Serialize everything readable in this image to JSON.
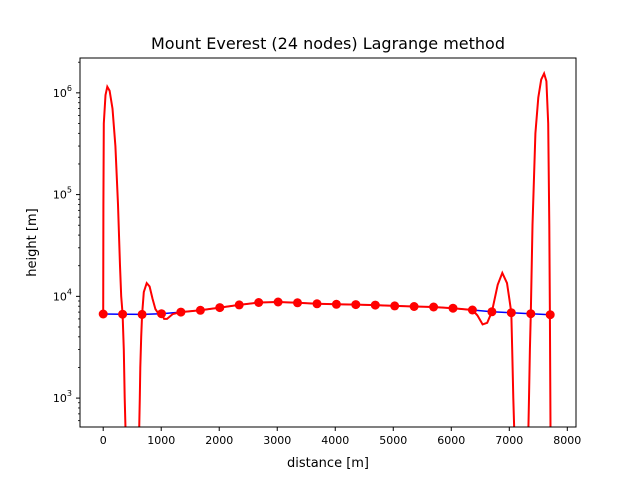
{
  "chart_data": {
    "type": "line",
    "title": "Mount Everest (24 nodes) Lagrange method",
    "xlabel": "distance [m]",
    "ylabel": "height [m]",
    "xlim": [
      -400,
      8150
    ],
    "ylim": [
      520,
      2200000
    ],
    "yscale": "log",
    "grid": false,
    "x_ticks": [
      0,
      1000,
      2000,
      3000,
      4000,
      5000,
      6000,
      7000,
      8000
    ],
    "y_ticks": [
      {
        "value": 1000,
        "base": "10",
        "exp": "3"
      },
      {
        "value": 10000,
        "base": "10",
        "exp": "4"
      },
      {
        "value": 100000,
        "base": "10",
        "exp": "5"
      },
      {
        "value": 1000000,
        "base": "10",
        "exp": "6"
      }
    ],
    "series": [
      {
        "role": "reference profile",
        "color": "#0000ff",
        "points": [
          [
            0,
            6700
          ],
          [
            335,
            6680
          ],
          [
            670,
            6650
          ],
          [
            1005,
            6750
          ],
          [
            1340,
            7000
          ],
          [
            1675,
            7300
          ],
          [
            2010,
            7750
          ],
          [
            2345,
            8250
          ],
          [
            2680,
            8700
          ],
          [
            3015,
            8800
          ],
          [
            3350,
            8650
          ],
          [
            3685,
            8450
          ],
          [
            4020,
            8350
          ],
          [
            4355,
            8300
          ],
          [
            4690,
            8200
          ],
          [
            5025,
            8050
          ],
          [
            5360,
            7950
          ],
          [
            5695,
            7850
          ],
          [
            6030,
            7650
          ],
          [
            6365,
            7350
          ],
          [
            6700,
            7050
          ],
          [
            7035,
            6900
          ],
          [
            7370,
            6750
          ],
          [
            7705,
            6600
          ]
        ]
      },
      {
        "role": "interpolation curve",
        "color": "#ff0000",
        "points": [
          [
            0,
            6700
          ],
          [
            3,
            80000
          ],
          [
            10,
            500000
          ],
          [
            40,
            950000
          ],
          [
            70,
            1150000
          ],
          [
            110,
            1050000
          ],
          [
            160,
            700000
          ],
          [
            210,
            300000
          ],
          [
            255,
            80000
          ],
          [
            290,
            20000
          ],
          [
            310,
            10000
          ],
          [
            335,
            6680
          ],
          [
            355,
            3000
          ],
          [
            370,
            1000
          ],
          [
            385,
            500
          ],
          [
            620,
            500
          ],
          [
            630,
            1000
          ],
          [
            640,
            2000
          ],
          [
            655,
            4000
          ],
          [
            670,
            6650
          ],
          [
            700,
            11000
          ],
          [
            750,
            13500
          ],
          [
            800,
            12500
          ],
          [
            850,
            9500
          ],
          [
            900,
            7500
          ],
          [
            950,
            6800
          ],
          [
            1005,
            6750
          ],
          [
            1050,
            6000
          ],
          [
            1100,
            6000
          ],
          [
            1200,
            6700
          ],
          [
            1340,
            7000
          ],
          [
            1675,
            7300
          ],
          [
            2010,
            7750
          ],
          [
            2345,
            8250
          ],
          [
            2680,
            8700
          ],
          [
            3015,
            8800
          ],
          [
            3350,
            8650
          ],
          [
            3685,
            8450
          ],
          [
            4020,
            8350
          ],
          [
            4355,
            8300
          ],
          [
            4690,
            8200
          ],
          [
            5025,
            8050
          ],
          [
            5360,
            7950
          ],
          [
            5695,
            7850
          ],
          [
            6030,
            7650
          ],
          [
            6200,
            7500
          ],
          [
            6365,
            7350
          ],
          [
            6450,
            6500
          ],
          [
            6540,
            5300
          ],
          [
            6620,
            5500
          ],
          [
            6700,
            7050
          ],
          [
            6800,
            13000
          ],
          [
            6880,
            17000
          ],
          [
            6960,
            13500
          ],
          [
            7000,
            9500
          ],
          [
            7035,
            6900
          ],
          [
            7050,
            3000
          ],
          [
            7070,
            1000
          ],
          [
            7085,
            500
          ],
          [
            7330,
            500
          ],
          [
            7340,
            1000
          ],
          [
            7355,
            3000
          ],
          [
            7370,
            6750
          ],
          [
            7400,
            50000
          ],
          [
            7450,
            400000
          ],
          [
            7500,
            900000
          ],
          [
            7550,
            1350000
          ],
          [
            7600,
            1550000
          ],
          [
            7640,
            1300000
          ],
          [
            7670,
            500000
          ],
          [
            7690,
            50000
          ],
          [
            7700,
            6600
          ],
          [
            7710,
            500
          ]
        ]
      }
    ],
    "nodes": {
      "color": "#ff0000",
      "x": [
        0,
        335,
        670,
        1005,
        1340,
        1675,
        2010,
        2345,
        2680,
        3015,
        3350,
        3685,
        4020,
        4355,
        4690,
        5025,
        5360,
        5695,
        6030,
        6365,
        6700,
        7035,
        7370,
        7705
      ],
      "y": [
        6700,
        6680,
        6650,
        6750,
        7000,
        7300,
        7750,
        8250,
        8700,
        8800,
        8650,
        8450,
        8350,
        8300,
        8200,
        8050,
        7950,
        7850,
        7650,
        7350,
        7050,
        6900,
        6750,
        6600
      ]
    }
  }
}
